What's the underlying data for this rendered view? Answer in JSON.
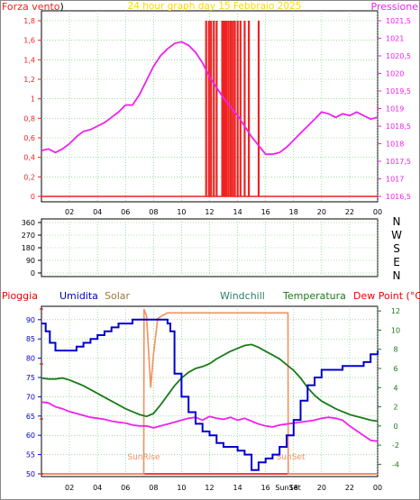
{
  "title": "24 hour graph day   15 Febbraio 2025",
  "colors": {
    "wind": "#ee2222",
    "pressure": "#ee22ee",
    "title": "#ffd700",
    "rain": "#ee0000",
    "humidity": "#0000cc",
    "solar": "#f09060",
    "windchill": "#2e7d6b",
    "temperature": "#1a7a1a",
    "dewpoint": "#ee22ee",
    "sun": "#f09060",
    "grid": "#66cc66"
  },
  "chart_data": [
    {
      "type": "line",
      "name": "pressure-wind",
      "left_label": "Forza vento",
      "left_unit": ")",
      "right_label": "Pressione",
      "left_ticks": [
        "1,8",
        "1,6",
        "1,4",
        "1,2",
        "1",
        "0,8",
        "0,6",
        "0,4",
        "0,2",
        "0"
      ],
      "left_ylim": [
        0,
        1.8
      ],
      "right_ticks": [
        "1021,5",
        "1021",
        "1020,5",
        "1020",
        "1019,5",
        "1019",
        "1018,5",
        "1018",
        "1017,5",
        "1017",
        "1016,5"
      ],
      "right_ylim": [
        1016.5,
        1021.5
      ],
      "x_ticks": [
        "02",
        "04",
        "06",
        "08",
        "10",
        "12",
        "14",
        "16",
        "18",
        "20",
        "22",
        "00"
      ],
      "xlim": [
        0,
        24
      ],
      "pressure": {
        "x": [
          0,
          0.5,
          1,
          1.5,
          2,
          2.5,
          3,
          3.5,
          4,
          4.5,
          5,
          5.5,
          6,
          6.5,
          7,
          7.5,
          8,
          8.5,
          9,
          9.5,
          10,
          10.5,
          11,
          11.5,
          12,
          12.5,
          13,
          13.5,
          14,
          14.5,
          15,
          15.5,
          16,
          16.5,
          17,
          17.5,
          18,
          18.5,
          19,
          19.5,
          20,
          20.5,
          21,
          21.5,
          22,
          22.5,
          23,
          23.5,
          24
        ],
        "values": [
          1017.8,
          1017.85,
          1017.75,
          1017.85,
          1018.0,
          1018.2,
          1018.35,
          1018.4,
          1018.5,
          1018.6,
          1018.75,
          1018.9,
          1019.1,
          1019.1,
          1019.4,
          1019.8,
          1020.2,
          1020.5,
          1020.7,
          1020.85,
          1020.9,
          1020.8,
          1020.6,
          1020.3,
          1019.9,
          1019.6,
          1019.3,
          1019.05,
          1018.8,
          1018.5,
          1018.2,
          1017.95,
          1017.7,
          1017.7,
          1017.75,
          1017.9,
          1018.1,
          1018.3,
          1018.5,
          1018.7,
          1018.9,
          1018.85,
          1018.75,
          1018.85,
          1018.8,
          1018.9,
          1018.8,
          1018.7,
          1018.75
        ]
      },
      "wind_bars": {
        "x": [
          11.75,
          11.95,
          12.1,
          12.3,
          12.5,
          12.9,
          13.0,
          13.1,
          13.2,
          13.35,
          13.5,
          13.65,
          13.8,
          14.0,
          14.2,
          14.5,
          14.8,
          15.5
        ],
        "values": [
          1.8,
          1.8,
          1.8,
          1.8,
          1.8,
          1.8,
          1.8,
          1.8,
          1.8,
          1.8,
          1.8,
          1.8,
          1.8,
          1.8,
          1.8,
          1.8,
          1.8,
          1.8
        ]
      }
    },
    {
      "type": "scatter",
      "name": "wind-direction",
      "left_ticks": [
        "360",
        "270",
        "180",
        "90",
        "0"
      ],
      "right_labels": [
        "N",
        "W",
        "S",
        "E",
        "N"
      ],
      "ylim": [
        0,
        360
      ],
      "x": [],
      "values": []
    },
    {
      "type": "line",
      "name": "weather",
      "legend": [
        "Pioggia",
        "Umidita",
        "Solar",
        "Windchill",
        "Temperatura",
        "Dew Point (°C)"
      ],
      "left_ticks": [
        "90",
        "85",
        "80",
        "75",
        "70",
        "65",
        "60",
        "55",
        "50"
      ],
      "left_ylim": [
        50,
        93
      ],
      "right_ticks": [
        "12",
        "10",
        "8",
        "6",
        "4",
        "2",
        "0",
        "-2",
        "-4"
      ],
      "right_ylim": [
        -5,
        12.3
      ],
      "x_ticks": [
        "02",
        "04",
        "06",
        "08",
        "10",
        "12",
        "14",
        "16",
        "18",
        "20",
        "22",
        "00"
      ],
      "xlim": [
        0,
        24
      ],
      "sunrise_label": "SunRise",
      "sunset_label": "SunSet",
      "sunset_tick": "SunSet",
      "sunrise_x": 7.3,
      "sunset_x": 17.6,
      "humidity": {
        "x": [
          0,
          0.3,
          0.6,
          1,
          1.5,
          2,
          2.5,
          3,
          3.5,
          4,
          4.5,
          5,
          5.5,
          6,
          6.5,
          7,
          7.5,
          8,
          8.5,
          9,
          9.2,
          9.5,
          10,
          10.5,
          11,
          11.5,
          12,
          12.5,
          13,
          13.5,
          14,
          14.5,
          15,
          15.5,
          16,
          16.5,
          17,
          17.5,
          18,
          18.5,
          19,
          19.5,
          20,
          20.5,
          21,
          21.5,
          22,
          22.5,
          23,
          23.5,
          24
        ],
        "values": [
          89,
          87,
          84,
          82,
          82,
          82,
          83,
          84,
          85,
          86,
          87,
          88,
          89,
          89,
          90,
          90,
          90,
          90,
          90,
          89,
          87,
          76,
          70,
          66,
          63,
          61,
          60,
          58,
          57,
          57,
          56,
          55,
          51,
          53,
          54,
          55,
          57,
          60,
          64,
          69,
          73,
          75,
          77,
          77,
          77,
          78,
          78,
          78,
          79,
          81,
          82
        ]
      },
      "solar": {
        "x": [
          0,
          7.3,
          7.32,
          7.5,
          7.8,
          8.0,
          8.3,
          8.6,
          9.0,
          10,
          12,
          14,
          16,
          17.6,
          17.62,
          24
        ],
        "values": [
          -5,
          -5,
          12.2,
          11.5,
          4.0,
          7.5,
          11.2,
          11.5,
          11.8,
          11.8,
          11.8,
          11.8,
          11.8,
          11.8,
          -5,
          -5
        ]
      },
      "temperature": {
        "x": [
          0,
          0.5,
          1,
          1.5,
          2,
          2.5,
          3,
          3.5,
          4,
          4.5,
          5,
          5.5,
          6,
          6.5,
          7,
          7.5,
          8,
          8.5,
          9,
          9.5,
          10,
          10.5,
          11,
          11.5,
          12,
          12.5,
          13,
          13.5,
          14,
          14.5,
          15,
          15.5,
          16,
          16.5,
          17,
          17.5,
          18,
          18.5,
          19,
          19.5,
          20,
          20.5,
          21,
          21.5,
          22,
          22.5,
          23,
          23.5,
          24
        ],
        "values": [
          5.0,
          4.9,
          4.9,
          5.0,
          4.8,
          4.5,
          4.2,
          3.8,
          3.4,
          3.0,
          2.6,
          2.2,
          1.8,
          1.5,
          1.2,
          1.0,
          1.3,
          2.2,
          3.2,
          4.2,
          5.0,
          5.6,
          6.0,
          6.2,
          6.5,
          7.0,
          7.4,
          7.8,
          8.1,
          8.4,
          8.5,
          8.2,
          7.8,
          7.4,
          7.0,
          6.4,
          5.8,
          5.0,
          4.0,
          3.2,
          2.6,
          2.2,
          1.8,
          1.5,
          1.2,
          1.0,
          0.8,
          0.6,
          0.5
        ]
      },
      "dewpoint": {
        "x": [
          0,
          0.5,
          1,
          1.5,
          2,
          2.5,
          3,
          3.5,
          4,
          4.5,
          5,
          5.5,
          6,
          6.5,
          7,
          7.5,
          8,
          8.5,
          9,
          9.5,
          10,
          10.5,
          11,
          11.5,
          12,
          12.5,
          13,
          13.5,
          14,
          14.5,
          15,
          15.5,
          16,
          16.5,
          17,
          17.5,
          18,
          18.5,
          19,
          19.5,
          20,
          20.5,
          21,
          21.5,
          22,
          22.5,
          23,
          23.5,
          24
        ],
        "values": [
          2.5,
          2.4,
          2.0,
          1.8,
          1.5,
          1.3,
          1.1,
          0.9,
          0.8,
          0.7,
          0.5,
          0.4,
          0.3,
          0.1,
          0.0,
          0.0,
          -0.2,
          0.0,
          0.2,
          0.4,
          0.6,
          0.8,
          0.9,
          0.6,
          1.0,
          0.8,
          0.7,
          0.9,
          0.6,
          0.8,
          0.5,
          0.2,
          0.0,
          -0.1,
          0.1,
          0.2,
          0.3,
          0.4,
          0.5,
          0.6,
          0.8,
          0.9,
          0.8,
          0.6,
          0.0,
          -0.5,
          -1.0,
          -1.5,
          -1.6
        ]
      }
    }
  ]
}
